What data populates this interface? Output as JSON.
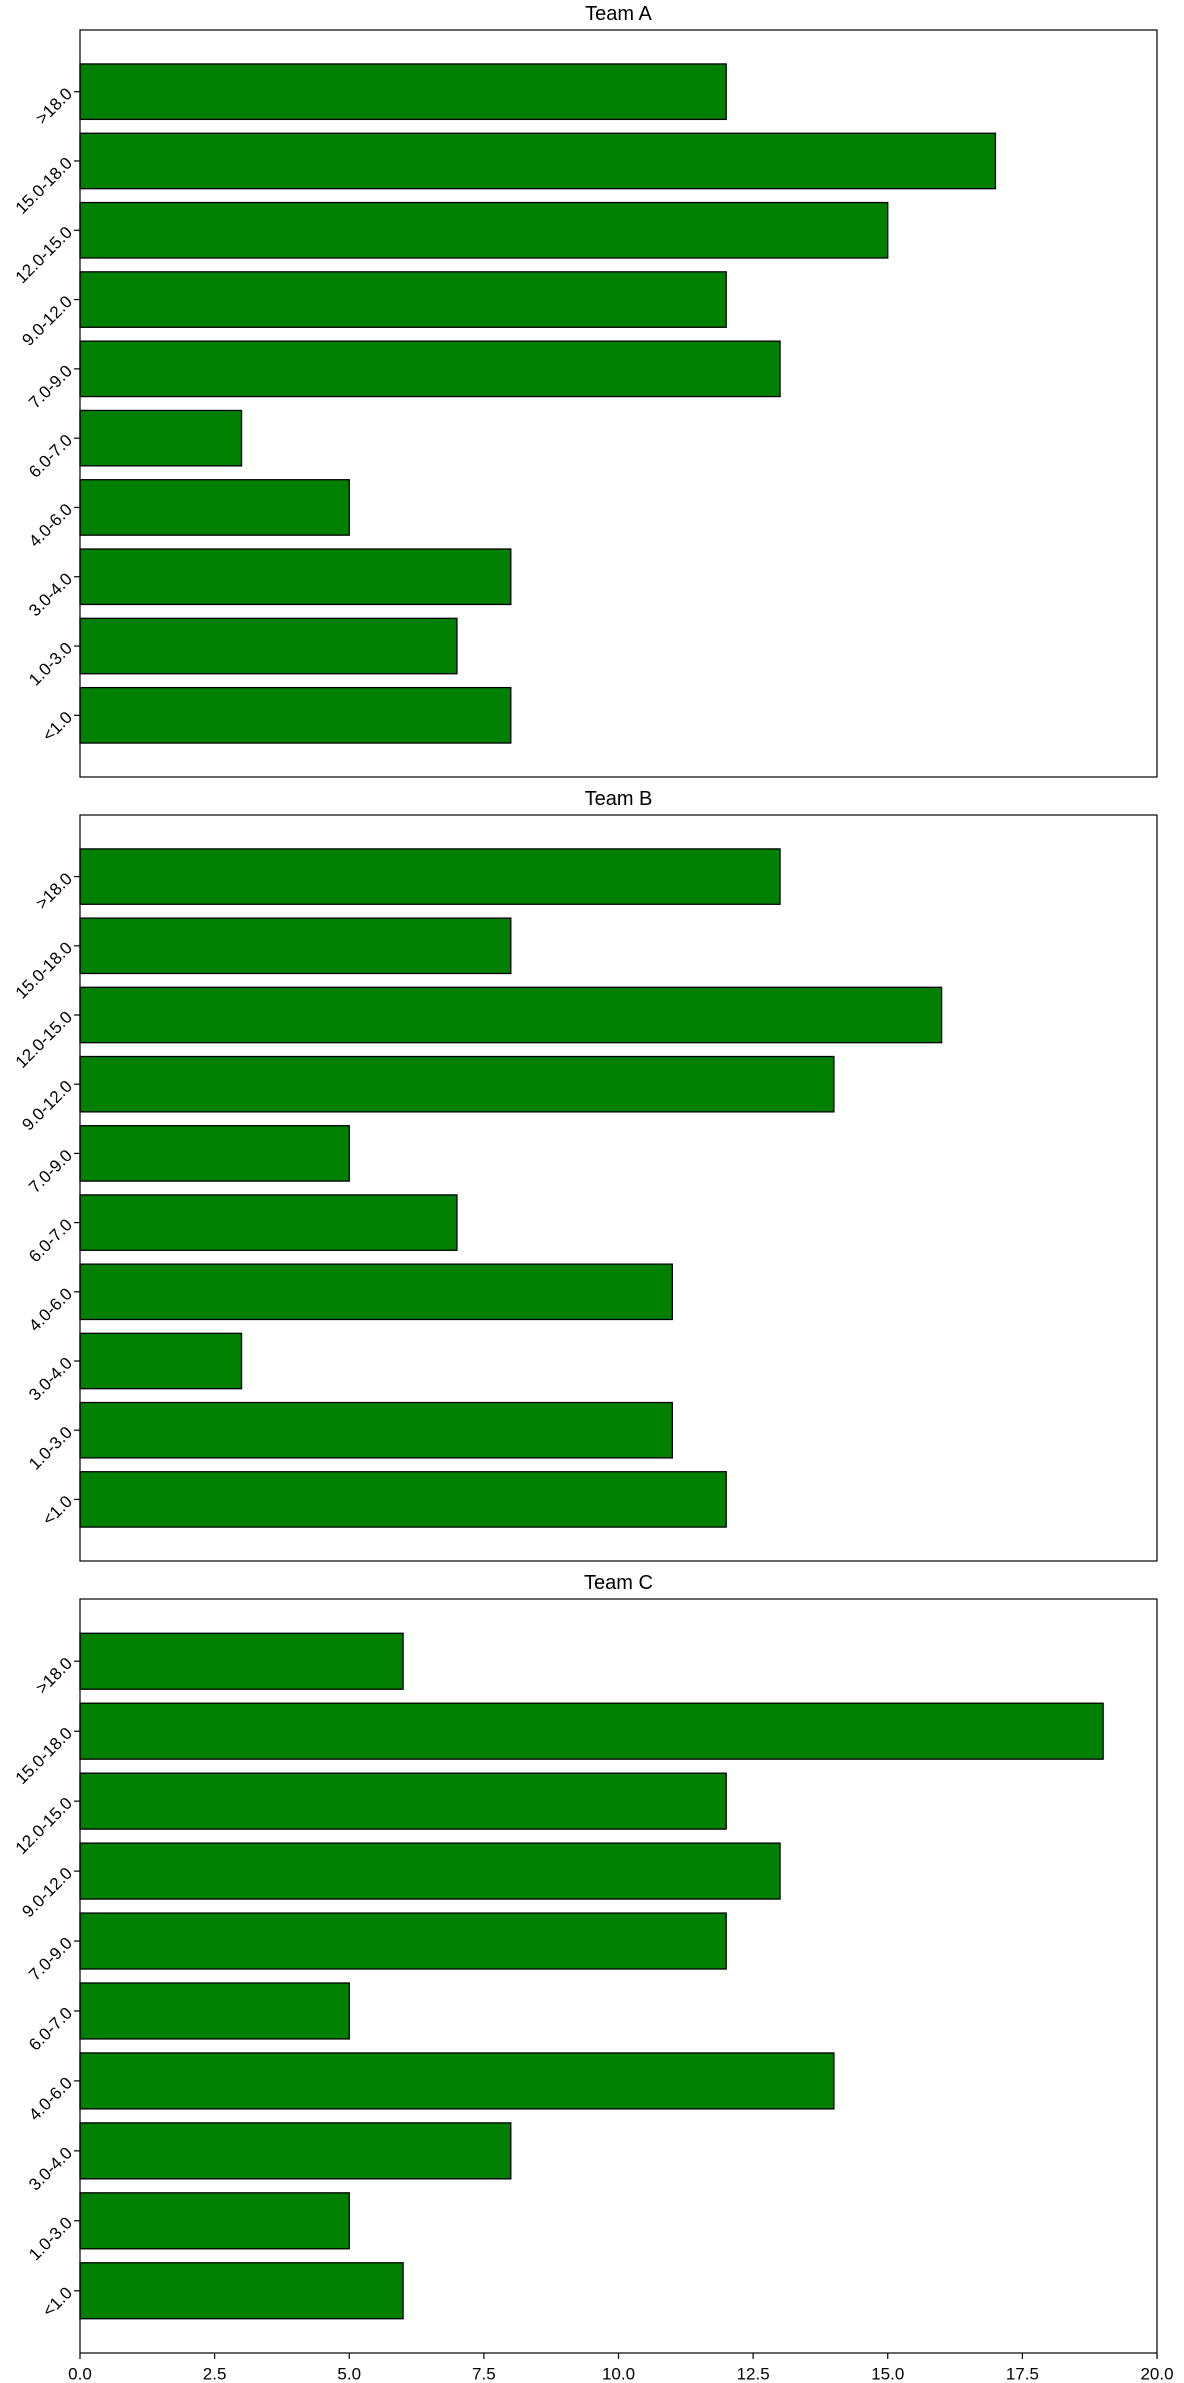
{
  "chart_data": [
    {
      "type": "barh",
      "title": "Team A",
      "categories": [
        "<1.0",
        "1.0-3.0",
        "3.0-4.0",
        "4.0-6.0",
        "6.0-7.0",
        "7.0-9.0",
        "9.0-12.0",
        "12.0-15.0",
        "15.0-18.0",
        ">18.0"
      ],
      "values": [
        8,
        7,
        8,
        5,
        3,
        13,
        12,
        15,
        17,
        12
      ],
      "color": "#008000",
      "xlim": [
        0,
        20
      ]
    },
    {
      "type": "barh",
      "title": "Team B",
      "categories": [
        "<1.0",
        "1.0-3.0",
        "3.0-4.0",
        "4.0-6.0",
        "6.0-7.0",
        "7.0-9.0",
        "9.0-12.0",
        "12.0-15.0",
        "15.0-18.0",
        ">18.0"
      ],
      "values": [
        12,
        11,
        3,
        11,
        7,
        5,
        14,
        16,
        8,
        13
      ],
      "color": "#008000",
      "xlim": [
        0,
        20
      ]
    },
    {
      "type": "barh",
      "title": "Team C",
      "categories": [
        "<1.0",
        "1.0-3.0",
        "3.0-4.0",
        "4.0-6.0",
        "6.0-7.0",
        "7.0-9.0",
        "9.0-12.0",
        "12.0-15.0",
        "15.0-18.0",
        ">18.0"
      ],
      "values": [
        6,
        5,
        8,
        14,
        5,
        12,
        13,
        12,
        19,
        6
      ],
      "color": "#008000",
      "xlim": [
        0,
        20
      ],
      "xticks": [
        {
          "value": 0,
          "label": "0.0"
        },
        {
          "value": 2.5,
          "label": "2.5"
        },
        {
          "value": 5,
          "label": "5.0"
        },
        {
          "value": 7.5,
          "label": "7.5"
        },
        {
          "value": 10,
          "label": "10.0"
        },
        {
          "value": 12.5,
          "label": "12.5"
        },
        {
          "value": 15,
          "label": "15.0"
        },
        {
          "value": 17.5,
          "label": "17.5"
        },
        {
          "value": 20,
          "label": "20.0"
        }
      ]
    }
  ]
}
